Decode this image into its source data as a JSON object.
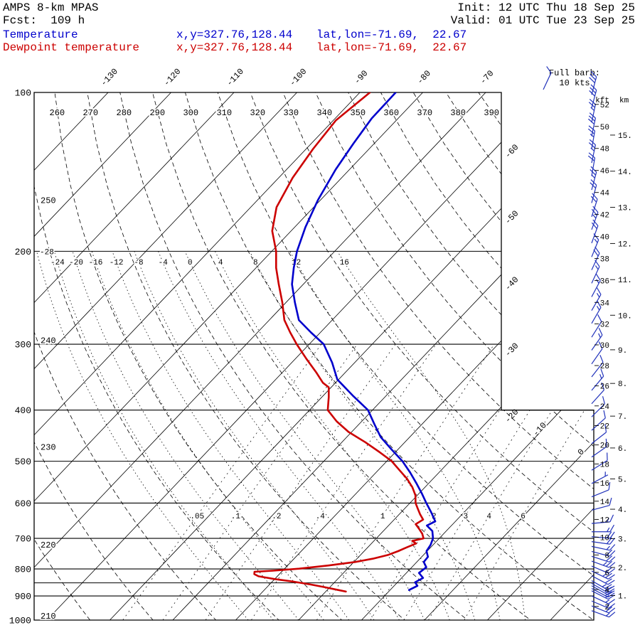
{
  "header": {
    "model": "AMPS 8-km MPAS",
    "fcst": "Fcst:  109 h",
    "init": "Init: 12 UTC Thu 18 Sep 25",
    "valid": "Valid: 01 UTC Tue 23 Sep 25",
    "temp_label": "Temperature",
    "temp_xy": "x,y=327.76,128.44",
    "temp_latlon": "lat,lon=-71.69,  22.67",
    "dewp_label": "Dewpoint temperature",
    "dewp_xy": "x,y=327.76,128.44",
    "dewp_latlon": "lat,lon=-71.69,  22.67"
  },
  "legend": {
    "full_barb_line1": "Full barb:",
    "full_barb_line2": "10 kts"
  },
  "colors": {
    "temperature": "#0000cc",
    "dewpoint": "#cc0000",
    "barbs": "#2233bb",
    "grid": "#000000"
  },
  "chart_data": {
    "type": "skewt-logp",
    "pressure_axis": {
      "unit": "hPa",
      "ticks": [
        100,
        200,
        300,
        400,
        500,
        600,
        700,
        800,
        900,
        1000
      ],
      "isobar_lines": [
        100,
        200,
        300,
        400,
        500,
        600,
        700,
        800,
        850,
        900,
        1000
      ]
    },
    "temperature_axis": {
      "unit": "C",
      "isotherm_min": -130,
      "isotherm_max": 30,
      "isotherm_step": 10,
      "top_labels": [
        -130,
        -120,
        -110,
        -100,
        -90,
        -80,
        -70
      ],
      "right_labels": [
        -60,
        -50,
        -40,
        -30,
        -20
      ],
      "inline_labels": [
        -10,
        0
      ]
    },
    "dry_adiabats": {
      "unit": "K",
      "values": [
        210,
        220,
        230,
        240,
        250,
        260,
        270,
        280,
        290,
        300,
        310,
        320,
        330,
        340,
        350,
        360,
        370,
        380,
        390
      ],
      "left_labels": [
        210,
        220,
        230,
        240,
        250
      ],
      "top_labels": [
        260,
        270,
        280,
        290,
        300,
        310,
        320,
        330,
        340,
        350,
        360,
        370,
        380,
        390
      ]
    },
    "moist_adiabats": {
      "unit": "C",
      "values": [
        -28,
        -24,
        -20,
        -16,
        -12,
        -8,
        -4,
        0,
        4,
        8,
        12,
        16
      ],
      "row_labels": [
        -24,
        -20,
        -16,
        -12,
        -8,
        -4,
        0,
        4,
        8,
        12,
        16
      ],
      "edge_labels": [
        -28
      ]
    },
    "mixing_ratio": {
      "unit": "g/kg",
      "values": [
        0.05,
        0.1,
        0.2,
        0.4,
        1,
        2,
        3,
        4,
        6
      ],
      "labels": [
        ".05",
        ".1",
        ".2",
        ".4",
        "1",
        "2",
        "3",
        "4",
        "6"
      ]
    },
    "height_axes": {
      "kft_header": "kft",
      "km_header": "km",
      "kft_ticks": [
        2,
        4,
        6,
        8,
        10,
        12,
        14,
        16,
        18,
        20,
        22,
        24,
        26,
        28,
        30,
        32,
        34,
        36,
        38,
        40,
        42,
        44,
        46,
        48,
        50,
        52
      ],
      "km_ticks": [
        1,
        2,
        3,
        4,
        5,
        6,
        7,
        8,
        9,
        10,
        11,
        12,
        13,
        14,
        15
      ]
    },
    "series": [
      {
        "name": "temperature",
        "color_key": "temperature",
        "units": {
          "p": "hPa",
          "t": "C"
        },
        "points": [
          [
            100,
            -84.3
          ],
          [
            112,
            -84.2
          ],
          [
            125,
            -83.3
          ],
          [
            140,
            -82.2
          ],
          [
            160,
            -80.4
          ],
          [
            180,
            -78.3
          ],
          [
            200,
            -76.0
          ],
          [
            215,
            -74.0
          ],
          [
            231,
            -71.8
          ],
          [
            250,
            -68.6
          ],
          [
            270,
            -65.3
          ],
          [
            285,
            -61.5
          ],
          [
            300,
            -57.7
          ],
          [
            325,
            -53.6
          ],
          [
            350,
            -50.2
          ],
          [
            375,
            -45.4
          ],
          [
            400,
            -40.7
          ],
          [
            425,
            -37.6
          ],
          [
            450,
            -34.6
          ],
          [
            475,
            -31.0
          ],
          [
            500,
            -27.5
          ],
          [
            525,
            -24.6
          ],
          [
            550,
            -22.0
          ],
          [
            575,
            -19.6
          ],
          [
            600,
            -17.4
          ],
          [
            625,
            -15.2
          ],
          [
            650,
            -13.2
          ],
          [
            662,
            -13.9
          ],
          [
            678,
            -12.2
          ],
          [
            700,
            -11.0
          ],
          [
            720,
            -10.4
          ],
          [
            740,
            -10.1
          ],
          [
            759,
            -9.0
          ],
          [
            776,
            -8.9
          ],
          [
            794,
            -7.7
          ],
          [
            814,
            -8.0
          ],
          [
            832,
            -6.6
          ],
          [
            848,
            -7.2
          ],
          [
            861,
            -6.3
          ],
          [
            877,
            -7.0
          ]
        ]
      },
      {
        "name": "dewpoint",
        "color_key": "dewpoint",
        "units": {
          "p": "hPa",
          "t": "C"
        },
        "points": [
          [
            100,
            -88.4
          ],
          [
            113,
            -89.6
          ],
          [
            128,
            -88.9
          ],
          [
            145,
            -87.8
          ],
          [
            165,
            -85.9
          ],
          [
            183,
            -83.0
          ],
          [
            200,
            -79.3
          ],
          [
            215,
            -76.8
          ],
          [
            231,
            -73.9
          ],
          [
            250,
            -70.6
          ],
          [
            270,
            -67.6
          ],
          [
            285,
            -64.8
          ],
          [
            300,
            -62.0
          ],
          [
            320,
            -58.2
          ],
          [
            340,
            -54.5
          ],
          [
            355,
            -52.0
          ],
          [
            362,
            -50.4
          ],
          [
            378,
            -48.9
          ],
          [
            400,
            -47.1
          ],
          [
            420,
            -44.0
          ],
          [
            440,
            -40.5
          ],
          [
            460,
            -36.3
          ],
          [
            480,
            -32.6
          ],
          [
            500,
            -29.2
          ],
          [
            520,
            -26.6
          ],
          [
            540,
            -24.1
          ],
          [
            560,
            -22.0
          ],
          [
            580,
            -20.3
          ],
          [
            600,
            -19.1
          ],
          [
            615,
            -17.9
          ],
          [
            630,
            -16.7
          ],
          [
            645,
            -15.4
          ],
          [
            658,
            -15.9
          ],
          [
            672,
            -14.6
          ],
          [
            686,
            -13.4
          ],
          [
            700,
            -12.5
          ],
          [
            708,
            -13.9
          ],
          [
            716,
            -12.9
          ],
          [
            728,
            -13.8
          ],
          [
            740,
            -14.6
          ],
          [
            752,
            -15.6
          ],
          [
            765,
            -17.5
          ],
          [
            776,
            -19.8
          ],
          [
            788,
            -23.5
          ],
          [
            799,
            -27.7
          ],
          [
            806,
            -31.5
          ],
          [
            810,
            -34.3
          ],
          [
            818,
            -34.0
          ],
          [
            826,
            -33.0
          ],
          [
            836,
            -30.0
          ],
          [
            846,
            -26.5
          ],
          [
            856,
            -23.5
          ],
          [
            866,
            -20.9
          ],
          [
            876,
            -18.5
          ],
          [
            883,
            -16.8
          ]
        ]
      }
    ],
    "wind_barbs": {
      "full_barb_kts": 10,
      "units": {
        "p": "hPa",
        "speed": "kts",
        "dir": "deg_from"
      },
      "levels": [
        [
          101,
          30,
          15
        ],
        [
          107,
          30,
          15
        ],
        [
          114,
          25,
          12
        ],
        [
          121,
          30,
          12
        ],
        [
          128,
          25,
          10
        ],
        [
          136,
          25,
          12
        ],
        [
          144,
          20,
          10
        ],
        [
          153,
          25,
          15
        ],
        [
          162,
          20,
          15
        ],
        [
          172,
          20,
          18
        ],
        [
          182,
          25,
          20
        ],
        [
          193,
          20,
          20
        ],
        [
          205,
          15,
          22
        ],
        [
          217,
          20,
          25
        ],
        [
          230,
          15,
          25
        ],
        [
          244,
          15,
          28
        ],
        [
          259,
          15,
          30
        ],
        [
          274,
          15,
          30
        ],
        [
          291,
          10,
          32
        ],
        [
          308,
          15,
          35
        ],
        [
          327,
          10,
          35
        ],
        [
          346,
          10,
          38
        ],
        [
          367,
          15,
          40
        ],
        [
          389,
          10,
          42
        ],
        [
          412,
          10,
          45
        ],
        [
          437,
          10,
          48
        ],
        [
          463,
          10,
          52
        ],
        [
          491,
          10,
          55
        ],
        [
          520,
          10,
          58
        ],
        [
          551,
          5,
          62
        ],
        [
          584,
          10,
          68
        ],
        [
          619,
          10,
          75
        ],
        [
          656,
          15,
          85
        ],
        [
          680,
          15,
          90
        ],
        [
          695,
          20,
          95
        ],
        [
          710,
          20,
          98
        ],
        [
          725,
          15,
          102
        ],
        [
          741,
          20,
          105
        ],
        [
          757,
          20,
          108
        ],
        [
          773,
          25,
          110
        ],
        [
          790,
          20,
          113
        ],
        [
          807,
          25,
          116
        ],
        [
          824,
          20,
          118
        ],
        [
          842,
          25,
          120
        ],
        [
          852,
          20,
          120
        ],
        [
          861,
          15,
          119
        ],
        [
          871,
          20,
          118
        ],
        [
          880,
          15,
          117
        ],
        [
          900,
          15,
          115
        ],
        [
          920,
          15,
          113
        ],
        [
          940,
          20,
          112
        ],
        [
          960,
          15,
          110
        ]
      ]
    }
  }
}
